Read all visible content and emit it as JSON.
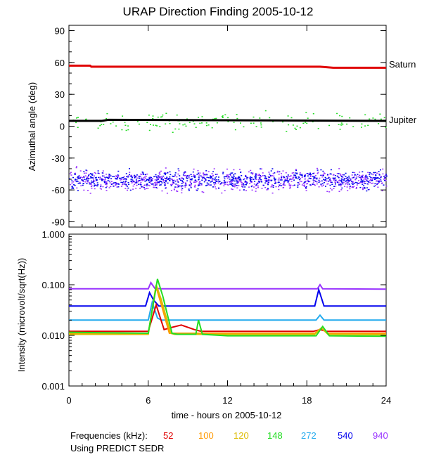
{
  "chart_data": [
    {
      "type": "scatter",
      "title": "URAP Direction Finding  2005-10-12",
      "ylabel": "Azimuthal angle (deg)",
      "xlim": [
        0,
        24
      ],
      "ylim": [
        -95,
        95
      ],
      "yticks": [
        "90",
        "60",
        "30",
        "0",
        "-30",
        "-60",
        "-90"
      ],
      "ytick_values": [
        90,
        60,
        30,
        0,
        -30,
        -60,
        -90
      ],
      "annotations": [
        {
          "text": "Saturn",
          "y": 56,
          "color": "#e00000"
        },
        {
          "text": "Jupiter",
          "y": 5,
          "color": "#000000"
        }
      ],
      "reference_lines": [
        {
          "name": "Saturn",
          "color": "#e00000",
          "x": [
            0,
            1.6,
            1.7,
            19,
            20,
            24
          ],
          "y": [
            57,
            57,
            56,
            56,
            55,
            55
          ]
        },
        {
          "name": "Jupiter",
          "color": "#000000",
          "x": [
            0,
            2.5,
            3,
            24
          ],
          "y": [
            5,
            5,
            6,
            5
          ]
        }
      ],
      "clusters": [
        {
          "name": "940",
          "color": "#9933ff",
          "x_range": [
            0,
            24
          ],
          "y_center": -51,
          "y_spread": 6
        },
        {
          "name": "540",
          "color": "#0000ee",
          "x_range": [
            0,
            24
          ],
          "y_center": -50,
          "y_spread": 5
        },
        {
          "name": "148",
          "color": "#22dd22",
          "x_range": [
            0,
            24
          ],
          "y_center": 5,
          "y_spread": 5
        }
      ]
    },
    {
      "type": "line",
      "xlabel": "time - hours on 2005-10-12",
      "ylabel": "Intensity (microvolt/sqrt(Hz))",
      "yscale": "log",
      "xlim": [
        0,
        24
      ],
      "ylim": [
        0.001,
        1.0
      ],
      "xticks": [
        "0",
        "6",
        "12",
        "18",
        "24"
      ],
      "xtick_values": [
        0,
        6,
        12,
        18,
        24
      ],
      "yticks": [
        "1.000",
        "0.100",
        "0.010",
        "0.001"
      ],
      "ytick_values": [
        1.0,
        0.1,
        0.01,
        0.001
      ],
      "series": [
        {
          "name": "940",
          "color": "#9933ff",
          "x": [
            0,
            6,
            6.2,
            6.5,
            7,
            18.8,
            19,
            19.2,
            24
          ],
          "y": [
            0.083,
            0.083,
            0.11,
            0.085,
            0.083,
            0.083,
            0.1,
            0.083,
            0.082
          ]
        },
        {
          "name": "540",
          "color": "#0000ee",
          "x": [
            0,
            5.8,
            6.1,
            6.4,
            6.8,
            18.6,
            18.9,
            19.3,
            24
          ],
          "y": [
            0.038,
            0.038,
            0.07,
            0.05,
            0.038,
            0.038,
            0.08,
            0.038,
            0.038
          ]
        },
        {
          "name": "272",
          "color": "#22aaee",
          "x": [
            0,
            6,
            6.3,
            6.7,
            7,
            18.7,
            19,
            19.3,
            24
          ],
          "y": [
            0.02,
            0.02,
            0.045,
            0.022,
            0.02,
            0.02,
            0.025,
            0.02,
            0.02
          ]
        },
        {
          "name": "52",
          "color": "#e00000",
          "x": [
            0,
            6,
            6.6,
            7.2,
            7.6,
            8.5,
            9.5,
            10,
            12,
            18.5,
            19,
            19.5,
            24
          ],
          "y": [
            0.012,
            0.012,
            0.04,
            0.013,
            0.014,
            0.016,
            0.013,
            0.012,
            0.012,
            0.012,
            0.013,
            0.012,
            0.012
          ]
        },
        {
          "name": "100",
          "color": "#ff9900",
          "x": [
            0,
            6,
            6.6,
            7,
            7.6,
            8,
            12,
            18.6,
            19.1,
            19.6,
            24
          ],
          "y": [
            0.011,
            0.011,
            0.09,
            0.04,
            0.011,
            0.011,
            0.011,
            0.011,
            0.014,
            0.011,
            0.011
          ]
        },
        {
          "name": "120",
          "color": "#ddbb00",
          "x": [
            0,
            6,
            6.6,
            7,
            7.7,
            8,
            12,
            18.6,
            19.1,
            19.6,
            24
          ],
          "y": [
            0.0105,
            0.0105,
            0.1,
            0.05,
            0.011,
            0.0105,
            0.0105,
            0.0105,
            0.014,
            0.0105,
            0.0103
          ]
        },
        {
          "name": "148",
          "color": "#22dd22",
          "x": [
            0,
            6,
            6.7,
            7.1,
            7.8,
            8.2,
            9.6,
            9.8,
            10.1,
            12,
            18.7,
            19.2,
            19.7,
            24
          ],
          "y": [
            0.0115,
            0.011,
            0.13,
            0.06,
            0.011,
            0.0105,
            0.0105,
            0.02,
            0.0105,
            0.0098,
            0.0098,
            0.015,
            0.0098,
            0.0096
          ]
        }
      ]
    }
  ],
  "legend": {
    "label": "Frequencies (kHz):",
    "items": [
      {
        "text": "52",
        "color": "#e00000"
      },
      {
        "text": "100",
        "color": "#ff9900"
      },
      {
        "text": "120",
        "color": "#ddbb00"
      },
      {
        "text": "148",
        "color": "#22dd22"
      },
      {
        "text": "272",
        "color": "#22aaee"
      },
      {
        "text": "540",
        "color": "#0000ee"
      },
      {
        "text": "940",
        "color": "#9933ff"
      }
    ]
  },
  "footer": {
    "note": "Using PREDICT SEDR"
  }
}
